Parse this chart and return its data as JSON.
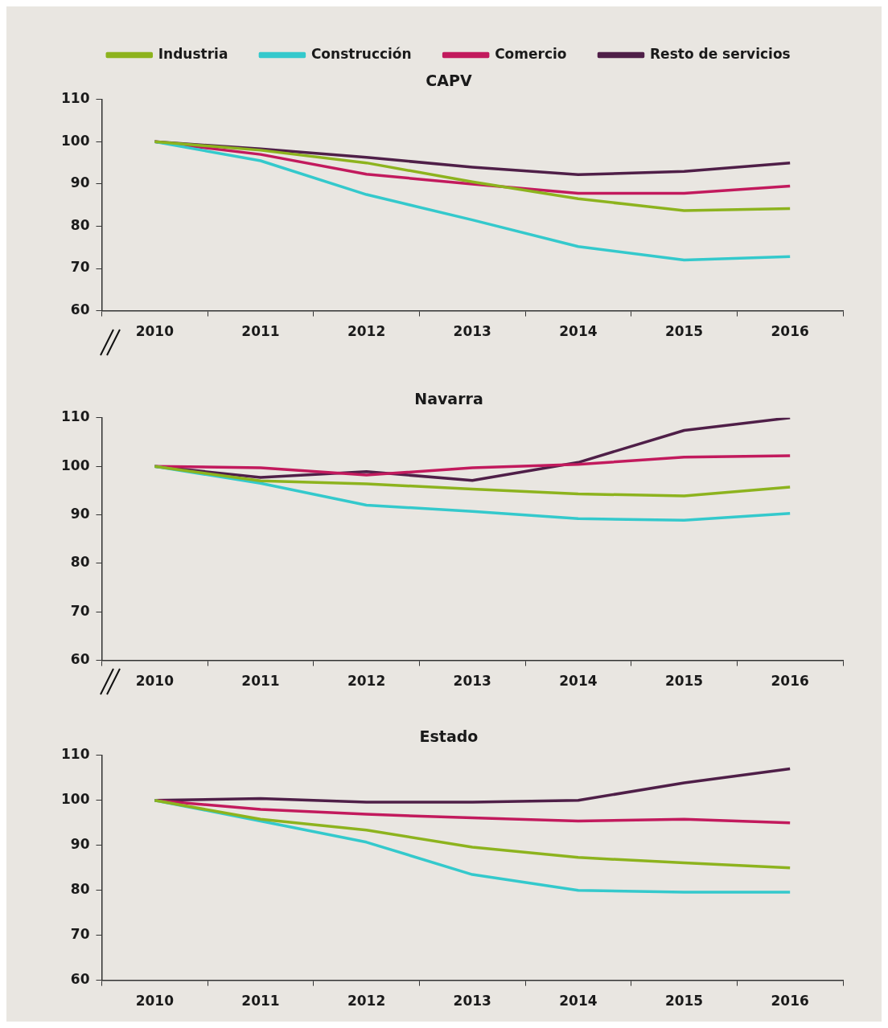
{
  "chart_data": [
    {
      "type": "line",
      "title": "CAPV",
      "categories": [
        "2010",
        "2011",
        "2012",
        "2013",
        "2014",
        "2015",
        "2016"
      ],
      "ylim": [
        60,
        110
      ],
      "yticks": [
        60,
        70,
        80,
        90,
        100,
        110
      ],
      "legend": "top",
      "series": [
        {
          "name": "Industria",
          "color": "#8db31e",
          "values": [
            100,
            98,
            95,
            90.5,
            86.5,
            83.7,
            84.2
          ]
        },
        {
          "name": "Construcción",
          "color": "#34c9cc",
          "values": [
            100,
            95.5,
            87.5,
            81.5,
            75.2,
            72,
            72.8
          ]
        },
        {
          "name": "Comercio",
          "color": "#c21a5d",
          "values": [
            100,
            97,
            92.3,
            90,
            87.8,
            87.8,
            89.5
          ]
        },
        {
          "name": "Resto de servicios",
          "color": "#4f1f48",
          "values": [
            100,
            98.3,
            96.3,
            94,
            92.2,
            93,
            95
          ]
        }
      ]
    },
    {
      "type": "line",
      "title": "Navarra",
      "categories": [
        "2010",
        "2011",
        "2012",
        "2013",
        "2014",
        "2015",
        "2016"
      ],
      "ylim": [
        60,
        110
      ],
      "yticks": [
        60,
        70,
        80,
        90,
        100,
        110
      ],
      "series": [
        {
          "color": "#8db31e",
          "values": [
            100,
            97,
            96.4,
            95.3,
            94.3,
            93.9,
            95.7
          ]
        },
        {
          "color": "#34c9cc",
          "values": [
            100,
            96.5,
            92,
            90.7,
            89.2,
            88.9,
            90.3
          ]
        },
        {
          "color": "#c21a5d",
          "values": [
            100,
            99.7,
            98.2,
            99.7,
            100.4,
            101.9,
            102.2
          ]
        },
        {
          "color": "#4f1f48",
          "values": [
            100,
            97.7,
            98.9,
            97.1,
            100.8,
            107.4,
            110
          ]
        }
      ]
    },
    {
      "type": "line",
      "title": "Estado",
      "categories": [
        "2010",
        "2011",
        "2012",
        "2013",
        "2014",
        "2015",
        "2016"
      ],
      "ylim": [
        60,
        110
      ],
      "yticks": [
        60,
        70,
        80,
        90,
        100,
        110
      ],
      "series": [
        {
          "color": "#8db31e",
          "values": [
            100,
            95.8,
            93.4,
            89.6,
            87.3,
            86.1,
            85
          ]
        },
        {
          "color": "#34c9cc",
          "values": [
            100,
            95.4,
            90.7,
            83.5,
            80,
            79.6,
            79.6
          ]
        },
        {
          "color": "#c21a5d",
          "values": [
            100,
            98,
            96.9,
            96.1,
            95.4,
            95.8,
            95
          ]
        },
        {
          "color": "#4f1f48",
          "values": [
            100,
            100.4,
            99.6,
            99.6,
            100,
            103.9,
            107
          ]
        }
      ]
    }
  ]
}
